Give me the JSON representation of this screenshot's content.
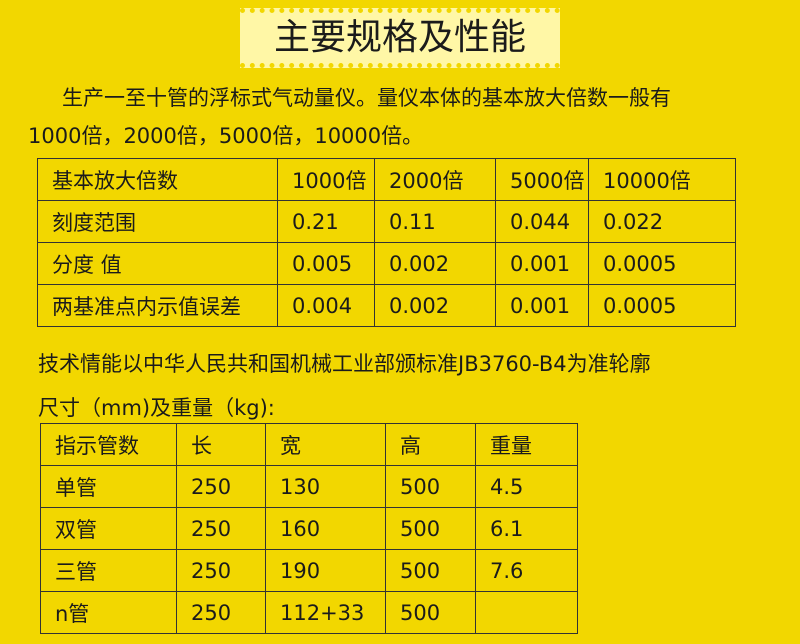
{
  "header": {
    "title": "主要规格及性能"
  },
  "intro": {
    "lines": [
      "生产一至十管的浮标式气动量仪。量仪本体的基本放大倍数一般有",
      "1000倍，2000倍，5000倍，10000倍。"
    ]
  },
  "table1": {
    "header": [
      "基本放大倍数",
      "1000倍",
      "2000倍",
      "5000倍",
      "10000倍"
    ],
    "rows": [
      [
        "刻度范围",
        "0.21",
        "0.11",
        "0.044",
        "0.022"
      ],
      [
        "分度 值",
        "0.005",
        "0.002",
        "0.001",
        "0.0005"
      ],
      [
        "两基准点内示值误差",
        "0.004",
        "0.002",
        "0.001",
        "0.0005"
      ]
    ]
  },
  "note": {
    "lines": [
      "技术情能以中华人民共和国机械工业部颁标准JB3760-B4为准轮廓",
      "尺寸（mm)及重量（kg):"
    ]
  },
  "table2": {
    "header": [
      "指示管数",
      "长",
      "宽",
      "高",
      "重量"
    ],
    "rows": [
      [
        "单管",
        "250",
        "130",
        "500",
        "4.5"
      ],
      [
        "双管",
        "250",
        "160",
        "500",
        "6.1"
      ],
      [
        "三管",
        "250",
        "190",
        "500",
        "7.6"
      ],
      [
        "n管",
        "250",
        "112+33",
        "500",
        null
      ]
    ]
  }
}
